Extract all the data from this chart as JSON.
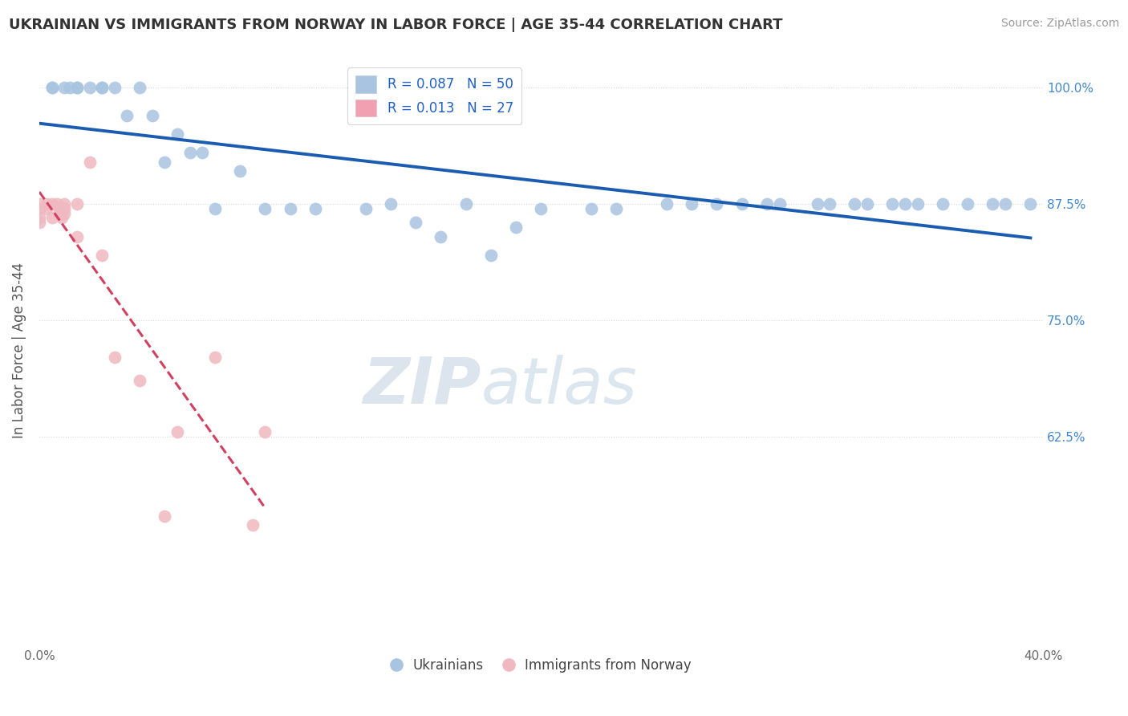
{
  "title": "UKRAINIAN VS IMMIGRANTS FROM NORWAY IN LABOR FORCE | AGE 35-44 CORRELATION CHART",
  "source": "Source: ZipAtlas.com",
  "ylabel": "In Labor Force | Age 35-44",
  "x_min": 0.0,
  "x_max": 0.4,
  "y_min": 0.4,
  "y_max": 1.035,
  "x_ticks": [
    0.0,
    0.1,
    0.2,
    0.3,
    0.4
  ],
  "x_tick_labels": [
    "0.0%",
    "",
    "",
    "",
    "40.0%"
  ],
  "y_ticks": [
    0.625,
    0.75,
    0.875,
    1.0
  ],
  "y_tick_labels": [
    "62.5%",
    "75.0%",
    "87.5%",
    "100.0%"
  ],
  "grid_color": "#d8d8d8",
  "background_color": "#ffffff",
  "watermark_zip": "ZIP",
  "watermark_atlas": "atlas",
  "watermark_color": "#c5d8ea",
  "legend_label_blue": "R = 0.087   N = 50",
  "legend_label_pink": "R = 0.013   N = 27",
  "legend_color_blue": "#a8c4e0",
  "legend_color_pink": "#f0a0b0",
  "scatter_blue_color": "#a8c4e0",
  "scatter_pink_color": "#f0b8c0",
  "trendline_blue_color": "#1a5cb0",
  "trendline_pink_color": "#d04060",
  "blue_x": [
    0.005,
    0.005,
    0.01,
    0.012,
    0.015,
    0.015,
    0.02,
    0.025,
    0.025,
    0.03,
    0.035,
    0.04,
    0.045,
    0.05,
    0.055,
    0.06,
    0.065,
    0.07,
    0.08,
    0.09,
    0.1,
    0.11,
    0.13,
    0.14,
    0.15,
    0.16,
    0.17,
    0.18,
    0.19,
    0.2,
    0.22,
    0.23,
    0.25,
    0.26,
    0.27,
    0.28,
    0.29,
    0.295,
    0.31,
    0.315,
    0.325,
    0.33,
    0.34,
    0.345,
    0.35,
    0.36,
    0.37,
    0.38,
    0.385,
    0.395
  ],
  "blue_y": [
    1.0,
    1.0,
    1.0,
    1.0,
    1.0,
    1.0,
    1.0,
    1.0,
    1.0,
    1.0,
    0.97,
    1.0,
    0.97,
    0.92,
    0.95,
    0.93,
    0.93,
    0.87,
    0.91,
    0.87,
    0.87,
    0.87,
    0.87,
    0.875,
    0.855,
    0.84,
    0.875,
    0.82,
    0.85,
    0.87,
    0.87,
    0.87,
    0.875,
    0.875,
    0.875,
    0.875,
    0.875,
    0.875,
    0.875,
    0.875,
    0.875,
    0.875,
    0.875,
    0.875,
    0.875,
    0.875,
    0.875,
    0.875,
    0.875,
    0.875
  ],
  "pink_x": [
    0.0,
    0.0,
    0.0,
    0.0,
    0.003,
    0.003,
    0.005,
    0.005,
    0.007,
    0.008,
    0.008,
    0.009,
    0.009,
    0.01,
    0.01,
    0.01,
    0.015,
    0.015,
    0.02,
    0.025,
    0.03,
    0.04,
    0.05,
    0.055,
    0.07,
    0.085,
    0.09
  ],
  "pink_y": [
    0.875,
    0.87,
    0.86,
    0.855,
    0.875,
    0.87,
    0.875,
    0.86,
    0.875,
    0.87,
    0.865,
    0.87,
    0.86,
    0.875,
    0.87,
    0.865,
    0.875,
    0.84,
    0.92,
    0.82,
    0.71,
    0.685,
    0.54,
    0.63,
    0.71,
    0.53,
    0.63
  ]
}
